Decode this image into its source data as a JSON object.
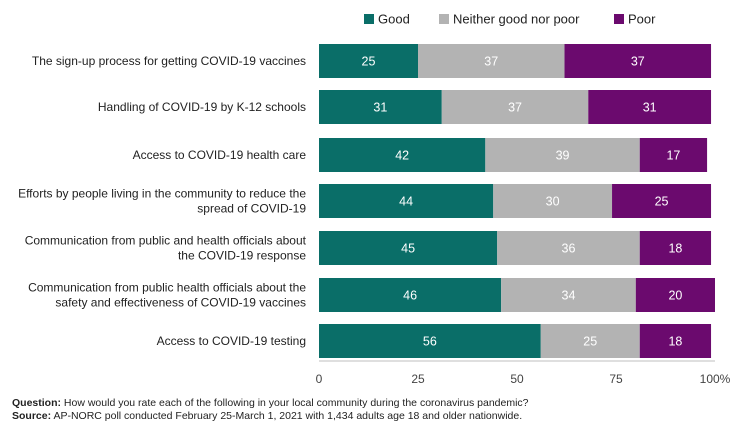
{
  "chart_data": {
    "type": "bar",
    "orientation": "horizontal",
    "stacked": true,
    "categories": [
      "The sign-up process for getting COVID-19 vaccines",
      "Handling of COVID-19 by K-12 schools",
      "Access to COVID-19 health care",
      "Efforts by people living in the community to reduce the spread of COVID-19",
      "Communication from public and health officials about the COVID-19 response",
      "Communication from public health officials about the safety and effectiveness of COVID-19 vaccines",
      "Access to COVID-19 testing"
    ],
    "series": [
      {
        "name": "Good",
        "color": "#0a6e68",
        "values": [
          25,
          31,
          42,
          44,
          45,
          46,
          56
        ]
      },
      {
        "name": "Neither good nor poor",
        "color": "#b3b3b3",
        "values": [
          37,
          37,
          39,
          30,
          36,
          34,
          25
        ]
      },
      {
        "name": "Poor",
        "color": "#6b0a6e",
        "values": [
          37,
          31,
          17,
          25,
          18,
          20,
          18
        ]
      }
    ],
    "xlim": [
      0,
      100
    ],
    "xticks": [
      "0",
      "25",
      "50",
      "75",
      "100%"
    ],
    "legend_position": "top",
    "grid": false
  },
  "footer": {
    "question_label": "Question:",
    "question_text": "How would you rate each of the following in your local community during the coronavirus pandemic?",
    "source_label": "Source:",
    "source_text": "AP-NORC poll conducted February 25-March 1, 2021 with 1,434 adults age 18 and older nationwide."
  }
}
